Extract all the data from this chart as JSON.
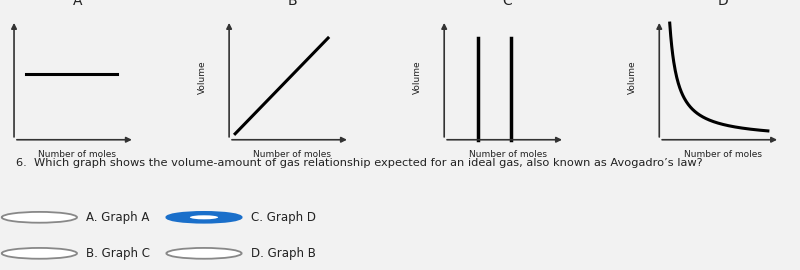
{
  "background_color": "#f2f2f2",
  "graph_labels": [
    "A",
    "B",
    "C",
    "D"
  ],
  "xlabel": "Number of moles",
  "ylabel": "Volume",
  "question": "6.  Which graph shows the volume-amount of gas relationship expected for an ideal gas, also known as Avogadro’s law?",
  "options": [
    {
      "label": "A. Graph A",
      "selected": false
    },
    {
      "label": "B. Graph C",
      "selected": false
    },
    {
      "label": "C. Graph D",
      "selected": true
    },
    {
      "label": "D. Graph B",
      "selected": false
    }
  ],
  "radio_color_selected": "#1a6fca",
  "radio_color_unselected": "#888888",
  "text_color": "#222222",
  "axes_color": "#333333"
}
